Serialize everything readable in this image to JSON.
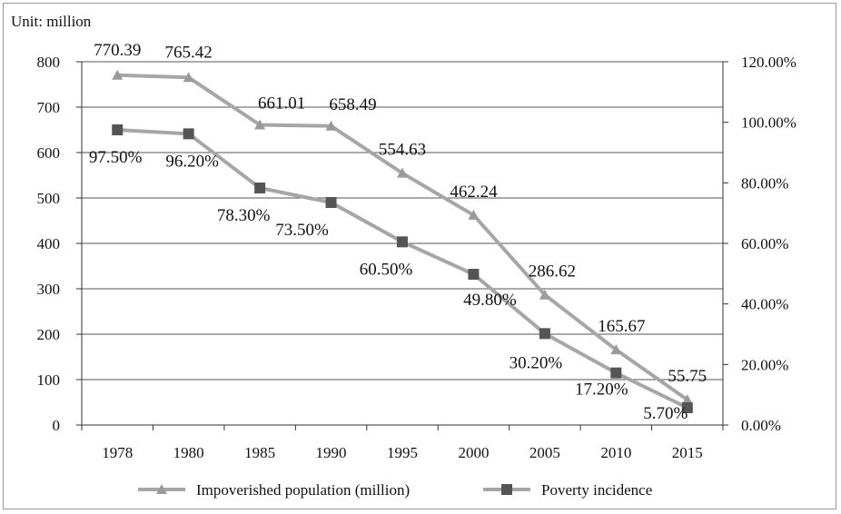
{
  "chart_data": {
    "type": "line",
    "unit_label": "Unit: million",
    "categories": [
      "1978",
      "1980",
      "1985",
      "1990",
      "1995",
      "2000",
      "2005",
      "2010",
      "2015"
    ],
    "y_left": {
      "ticks": [
        "0",
        "100",
        "200",
        "300",
        "400",
        "500",
        "600",
        "700",
        "800"
      ],
      "ylim": [
        0,
        800
      ]
    },
    "y_right": {
      "ticks": [
        "0.00%",
        "20.00%",
        "40.00%",
        "60.00%",
        "80.00%",
        "100.00%",
        "120.00%"
      ],
      "ylim": [
        0,
        120
      ]
    },
    "grid": true,
    "legend_position": "bottom",
    "series": [
      {
        "name": "Impoverished population (million)",
        "axis": "left",
        "marker": "triangle",
        "color": "#a6a6a6",
        "values": [
          770.39,
          765.42,
          661.01,
          658.49,
          554.63,
          462.24,
          286.62,
          165.67,
          55.75
        ],
        "labels": [
          "770.39",
          "765.42",
          "661.01",
          "658.49",
          "554.63",
          "462.24",
          "286.62",
          "165.67",
          "55.75"
        ]
      },
      {
        "name": "Poverty incidence",
        "axis": "right",
        "marker": "square",
        "color": "#a6a6a6",
        "marker_color": "#555555",
        "values": [
          97.5,
          96.2,
          78.3,
          73.5,
          60.5,
          49.8,
          30.2,
          17.2,
          5.7
        ],
        "labels": [
          "97.50%",
          "96.20%",
          "78.30%",
          "73.50%",
          "60.50%",
          "49.80%",
          "30.20%",
          "17.20%",
          "5.70%"
        ]
      }
    ]
  }
}
